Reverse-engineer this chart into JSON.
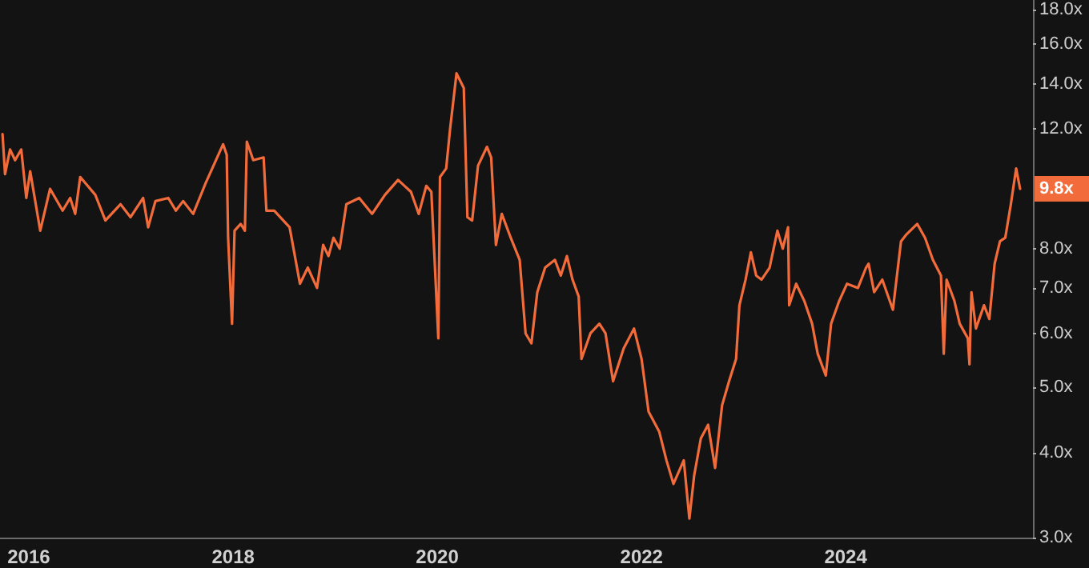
{
  "chart_data": {
    "type": "line",
    "log": "y",
    "grid": false,
    "marker": "none",
    "line_style": "solid",
    "xlim": [
      "2015-09-20",
      "2025-11-01"
    ],
    "xticks": [
      "2016",
      "2018",
      "2020",
      "2022",
      "2024"
    ],
    "ylim": [
      3,
      18.6
    ],
    "yticks": [
      {
        "value": 3,
        "label": "3.0x"
      },
      {
        "value": 4,
        "label": "4.0x"
      },
      {
        "value": 5,
        "label": "5.0x"
      },
      {
        "value": 6,
        "label": "6.0x"
      },
      {
        "value": 7,
        "label": "7.0x"
      },
      {
        "value": 8,
        "label": "8.0x"
      },
      {
        "value": 12,
        "label": "12.0x"
      },
      {
        "value": 14,
        "label": "14.0x"
      },
      {
        "value": 16,
        "label": "16.0x"
      },
      {
        "value": 18,
        "label": "18.0x"
      }
    ],
    "annotations": [
      {
        "text": "9.8x",
        "x": "2025-09-16",
        "y": 9.8
      }
    ],
    "series": [
      {
        "color": "#f26b3a",
        "x": [
          "2015-09-29",
          "2015-10-08",
          "2015-10-26",
          "2015-11-13",
          "2015-12-05",
          "2015-12-23",
          "2016-01-06",
          "2016-02-11",
          "2016-03-17",
          "2016-05-01",
          "2016-05-28",
          "2016-06-15",
          "2016-07-03",
          "2016-08-26",
          "2016-10-01",
          "2016-11-24",
          "2016-12-30",
          "2017-02-13",
          "2017-03-03",
          "2017-03-29",
          "2017-05-14",
          "2017-06-10",
          "2017-07-06",
          "2017-08-11",
          "2017-09-25",
          "2017-11-26",
          "2017-12-09",
          "2017-12-14",
          "2017-12-28",
          "2018-01-06",
          "2018-01-28",
          "2018-02-12",
          "2018-02-19",
          "2018-03-14",
          "2018-04-20",
          "2018-04-30",
          "2018-05-28",
          "2018-07-22",
          "2018-08-28",
          "2018-09-25",
          "2018-10-28",
          "2018-11-19",
          "2018-12-08",
          "2018-12-26",
          "2019-01-17",
          "2019-02-10",
          "2019-03-28",
          "2019-05-13",
          "2019-06-28",
          "2019-08-14",
          "2019-09-29",
          "2019-10-27",
          "2019-11-23",
          "2019-12-11",
          "2020-01-05",
          "2020-01-11",
          "2020-02-02",
          "2020-02-16",
          "2020-03-10",
          "2020-04-05",
          "2020-04-18",
          "2020-05-05",
          "2020-05-26",
          "2020-06-27",
          "2020-07-12",
          "2020-07-29",
          "2020-08-19",
          "2020-09-20",
          "2020-10-22",
          "2020-11-12",
          "2020-12-03",
          "2020-12-24",
          "2021-01-21",
          "2021-02-25",
          "2021-03-18",
          "2021-04-09",
          "2021-04-29",
          "2021-05-21",
          "2021-05-31",
          "2021-07-02",
          "2021-08-03",
          "2021-08-25",
          "2021-09-21",
          "2021-10-29",
          "2021-12-05",
          "2022-01-01",
          "2022-01-26",
          "2022-03-05",
          "2022-03-31",
          "2022-04-25",
          "2022-06-01",
          "2022-06-21",
          "2022-07-08",
          "2022-08-01",
          "2022-08-27",
          "2022-09-21",
          "2022-10-16",
          "2022-11-10",
          "2022-12-05",
          "2022-12-17",
          "2023-01-08",
          "2023-01-27",
          "2023-02-15",
          "2023-03-06",
          "2023-04-04",
          "2023-05-02",
          "2023-05-21",
          "2023-06-09",
          "2023-06-13",
          "2023-07-08",
          "2023-08-06",
          "2023-09-03",
          "2023-09-23",
          "2023-10-22",
          "2023-11-10",
          "2023-12-09",
          "2024-01-06",
          "2024-02-14",
          "2024-03-14",
          "2024-03-23",
          "2024-04-12",
          "2024-05-11",
          "2024-06-18",
          "2024-07-17",
          "2024-08-06",
          "2024-09-13",
          "2024-10-11",
          "2024-11-08",
          "2024-12-07",
          "2024-12-17",
          "2024-12-27",
          "2025-01-24",
          "2025-02-12",
          "2025-03-13",
          "2025-03-19",
          "2025-03-26",
          "2025-04-11",
          "2025-05-10",
          "2025-05-29",
          "2025-06-17",
          "2025-07-06",
          "2025-07-25",
          "2025-08-14",
          "2025-09-02",
          "2025-09-16"
        ],
        "values": [
          11.8,
          10.3,
          11.2,
          10.8,
          11.2,
          9.5,
          10.4,
          8.5,
          9.8,
          9.1,
          9.5,
          9.0,
          10.2,
          9.6,
          8.8,
          9.3,
          8.9,
          9.5,
          8.6,
          9.4,
          9.5,
          9.1,
          9.4,
          9.0,
          10.0,
          11.4,
          11.0,
          8.3,
          6.2,
          8.5,
          8.7,
          8.5,
          11.5,
          10.8,
          10.9,
          9.1,
          9.1,
          8.6,
          7.1,
          7.5,
          7.0,
          8.1,
          7.8,
          8.3,
          8.0,
          9.3,
          9.5,
          9.0,
          9.6,
          10.1,
          9.7,
          9.0,
          9.9,
          9.7,
          5.9,
          10.2,
          10.5,
          12.0,
          14.5,
          13.8,
          8.9,
          8.8,
          10.6,
          11.3,
          10.9,
          8.1,
          9.0,
          8.3,
          7.7,
          6.0,
          5.8,
          6.9,
          7.5,
          7.7,
          7.3,
          7.8,
          7.2,
          6.8,
          5.5,
          6.0,
          6.2,
          6.0,
          5.1,
          5.7,
          6.1,
          5.5,
          4.6,
          4.3,
          3.9,
          3.6,
          3.9,
          3.2,
          3.7,
          4.2,
          4.4,
          3.8,
          4.7,
          5.1,
          5.5,
          6.6,
          7.2,
          7.9,
          7.3,
          7.2,
          7.5,
          8.5,
          8.0,
          8.6,
          6.6,
          7.1,
          6.7,
          6.2,
          5.6,
          5.2,
          6.2,
          6.7,
          7.1,
          7.0,
          7.5,
          7.6,
          6.9,
          7.2,
          6.5,
          8.2,
          8.4,
          8.7,
          8.3,
          7.7,
          7.3,
          5.6,
          7.2,
          6.7,
          6.2,
          5.9,
          5.4,
          6.9,
          6.1,
          6.6,
          6.3,
          7.6,
          8.2,
          8.3,
          9.3,
          10.5,
          9.8
        ]
      }
    ]
  }
}
